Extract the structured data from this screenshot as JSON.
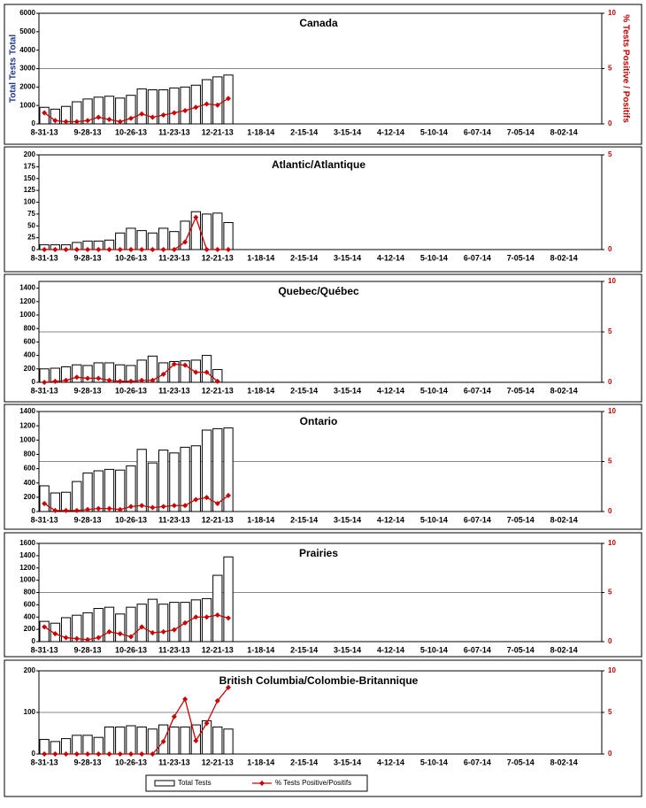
{
  "chart_data": [
    {
      "type": "bar",
      "title": "Canada",
      "ylabel": "Total Tests Total",
      "y2label": "% Tests Positive / Positifs",
      "categories": [
        "8-31-13",
        null,
        null,
        null,
        "9-28-13",
        null,
        null,
        null,
        "10-26-13",
        null,
        null,
        null,
        "11-23-13",
        null,
        null,
        null,
        "12-21-13",
        null,
        null,
        null,
        "1-18-14",
        null,
        null,
        null,
        "2-15-14",
        null,
        null,
        null,
        "3-15-14",
        null,
        null,
        null,
        "4-12-14",
        null,
        null,
        null,
        "5-10-14",
        null,
        null,
        null,
        "6-07-14",
        null,
        null,
        null,
        "7-05-14",
        null,
        null,
        null,
        "8-02-14",
        null,
        null,
        null
      ],
      "series": [
        {
          "color": "#ffffff",
          "values": [
            900,
            800,
            950,
            1200,
            1350,
            1450,
            1500,
            1400,
            1550,
            1900,
            1850,
            1850,
            1950,
            2000,
            2100,
            2400,
            2550,
            2650,
            null,
            null,
            null,
            null,
            null,
            null,
            null,
            null,
            null,
            null,
            null,
            null,
            null,
            null,
            null,
            null,
            null,
            null,
            null,
            null,
            null,
            null,
            null,
            null,
            null,
            null,
            null,
            null,
            null,
            null,
            null,
            null,
            null,
            null
          ]
        },
        {
          "type": "line",
          "axis": "y2",
          "color": "#cc0000",
          "values": [
            1.0,
            0.3,
            0.2,
            0.2,
            0.3,
            0.6,
            0.4,
            0.2,
            0.5,
            0.9,
            0.6,
            0.8,
            1.0,
            1.2,
            1.5,
            1.8,
            1.7,
            2.3,
            null,
            null,
            null,
            null,
            null,
            null,
            null,
            null,
            null,
            null,
            null,
            null,
            null,
            null,
            null,
            null,
            null,
            null,
            null,
            null,
            null,
            null,
            null,
            null,
            null,
            null,
            null,
            null,
            null,
            null,
            null,
            null,
            null,
            null
          ]
        }
      ],
      "ylim": [
        0,
        6000
      ],
      "yticks": [
        0,
        1000,
        2000,
        3000,
        4000,
        5000,
        6000
      ],
      "y2lim": [
        0,
        10
      ],
      "y2ticks": [
        0,
        5,
        10
      ],
      "grid": true
    },
    {
      "type": "bar",
      "title": "Atlantic/Atlantique",
      "categories": [
        "8-31-13",
        null,
        null,
        null,
        "9-28-13",
        null,
        null,
        null,
        "10-26-13",
        null,
        null,
        null,
        "11-23-13",
        null,
        null,
        null,
        "12-21-13",
        null,
        null,
        null,
        "1-18-14",
        null,
        null,
        null,
        "2-15-14",
        null,
        null,
        null,
        "3-15-14",
        null,
        null,
        null,
        "4-12-14",
        null,
        null,
        null,
        "5-10-14",
        null,
        null,
        null,
        "6-07-14",
        null,
        null,
        null,
        "7-05-14",
        null,
        null,
        null,
        "8-02-14",
        null,
        null,
        null
      ],
      "series": [
        {
          "color": "#ffffff",
          "values": [
            10,
            10,
            10,
            15,
            18,
            18,
            20,
            35,
            45,
            40,
            35,
            45,
            38,
            60,
            80,
            75,
            77,
            57,
            null,
            null,
            null,
            null,
            null,
            null,
            null,
            null,
            null,
            null,
            null,
            null,
            null,
            null,
            null,
            null,
            null,
            null,
            null,
            null,
            null,
            null,
            null,
            null,
            null,
            null,
            null,
            null,
            null,
            null,
            null,
            null,
            null,
            null
          ]
        },
        {
          "type": "line",
          "axis": "y2",
          "color": "#cc0000",
          "values": [
            0,
            0,
            0,
            0,
            0,
            0,
            0,
            0,
            0,
            0,
            0,
            0,
            0,
            0.4,
            1.7,
            0,
            0,
            0,
            null,
            null,
            null,
            null,
            null,
            null,
            null,
            null,
            null,
            null,
            null,
            null,
            null,
            null,
            null,
            null,
            null,
            null,
            null,
            null,
            null,
            null,
            null,
            null,
            null,
            null,
            null,
            null,
            null,
            null,
            null,
            null,
            null,
            null
          ]
        }
      ],
      "ylim": [
        0,
        200
      ],
      "yticks": [
        0,
        25,
        50,
        75,
        100,
        125,
        150,
        175,
        200
      ],
      "y2lim": [
        0,
        5
      ],
      "y2ticks": [
        0,
        5
      ],
      "grid": true
    },
    {
      "type": "bar",
      "title": "Quebec/Québec",
      "categories": [
        "8-31-13",
        null,
        null,
        null,
        "9-28-13",
        null,
        null,
        null,
        "10-26-13",
        null,
        null,
        null,
        "11-23-13",
        null,
        null,
        null,
        "12-21-13",
        null,
        null,
        null,
        "1-18-14",
        null,
        null,
        null,
        "2-15-14",
        null,
        null,
        null,
        "3-15-14",
        null,
        null,
        null,
        "4-12-14",
        null,
        null,
        null,
        "5-10-14",
        null,
        null,
        null,
        "6-07-14",
        null,
        null,
        null,
        "7-05-14",
        null,
        null,
        null,
        "8-02-14",
        null,
        null,
        null
      ],
      "series": [
        {
          "color": "#ffffff",
          "values": [
            200,
            210,
            230,
            260,
            250,
            290,
            290,
            260,
            250,
            330,
            390,
            290,
            310,
            320,
            330,
            400,
            190,
            null,
            null,
            null,
            null,
            null,
            null,
            null,
            null,
            null,
            null,
            null,
            null,
            null,
            null,
            null,
            null,
            null,
            null,
            null,
            null,
            null,
            null,
            null,
            null,
            null,
            null,
            null,
            null,
            null,
            null,
            null,
            null,
            null,
            null,
            null
          ]
        },
        {
          "type": "line",
          "axis": "y2",
          "color": "#cc0000",
          "values": [
            0,
            0.1,
            0.2,
            0.5,
            0.4,
            0.4,
            0.2,
            0.1,
            0.1,
            0.2,
            0.2,
            0.8,
            1.8,
            1.7,
            1.0,
            1.0,
            0.1,
            null,
            null,
            null,
            null,
            null,
            null,
            null,
            null,
            null,
            null,
            null,
            null,
            null,
            null,
            null,
            null,
            null,
            null,
            null,
            null,
            null,
            null,
            null,
            null,
            null,
            null,
            null,
            null,
            null,
            null,
            null,
            null,
            null,
            null,
            null
          ]
        }
      ],
      "ylim": [
        0,
        1500
      ],
      "yticks": [
        0,
        200,
        400,
        600,
        800,
        1000,
        1200,
        1400
      ],
      "y2lim": [
        0,
        10
      ],
      "y2ticks": [
        0,
        5,
        10
      ],
      "grid": true
    },
    {
      "type": "bar",
      "title": "Ontario",
      "categories": [
        "8-31-13",
        null,
        null,
        null,
        "9-28-13",
        null,
        null,
        null,
        "10-26-13",
        null,
        null,
        null,
        "11-23-13",
        null,
        null,
        null,
        "12-21-13",
        null,
        null,
        null,
        "1-18-14",
        null,
        null,
        null,
        "2-15-14",
        null,
        null,
        null,
        "3-15-14",
        null,
        null,
        null,
        "4-12-14",
        null,
        null,
        null,
        "5-10-14",
        null,
        null,
        null,
        "6-07-14",
        null,
        null,
        null,
        "7-05-14",
        null,
        null,
        null,
        "8-02-14",
        null,
        null,
        null
      ],
      "series": [
        {
          "color": "#ffffff",
          "values": [
            360,
            260,
            270,
            420,
            540,
            570,
            590,
            580,
            640,
            870,
            680,
            860,
            820,
            900,
            920,
            1140,
            1160,
            1170,
            null,
            null,
            null,
            null,
            null,
            null,
            null,
            null,
            null,
            null,
            null,
            null,
            null,
            null,
            null,
            null,
            null,
            null,
            null,
            null,
            null,
            null,
            null,
            null,
            null,
            null,
            null,
            null,
            null,
            null,
            null,
            null,
            null,
            null
          ]
        },
        {
          "type": "line",
          "axis": "y2",
          "color": "#cc0000",
          "values": [
            0.8,
            0.1,
            0.1,
            0.1,
            0.2,
            0.3,
            0.3,
            0.2,
            0.5,
            0.6,
            0.4,
            0.5,
            0.6,
            0.6,
            1.2,
            1.4,
            0.8,
            1.6,
            null,
            null,
            null,
            null,
            null,
            null,
            null,
            null,
            null,
            null,
            null,
            null,
            null,
            null,
            null,
            null,
            null,
            null,
            null,
            null,
            null,
            null,
            null,
            null,
            null,
            null,
            null,
            null,
            null,
            null,
            null,
            null,
            null,
            null
          ]
        }
      ],
      "ylim": [
        0,
        1400
      ],
      "yticks": [
        0,
        200,
        400,
        600,
        800,
        1000,
        1200,
        1400
      ],
      "y2lim": [
        0,
        10
      ],
      "y2ticks": [
        0,
        5,
        10
      ],
      "grid": true
    },
    {
      "type": "bar",
      "title": "Prairies",
      "categories": [
        "8-31-13",
        null,
        null,
        null,
        "9-28-13",
        null,
        null,
        null,
        "10-26-13",
        null,
        null,
        null,
        "11-23-13",
        null,
        null,
        null,
        "12-21-13",
        null,
        null,
        null,
        "1-18-14",
        null,
        null,
        null,
        "2-15-14",
        null,
        null,
        null,
        "3-15-14",
        null,
        null,
        null,
        "4-12-14",
        null,
        null,
        null,
        "5-10-14",
        null,
        null,
        null,
        "6-07-14",
        null,
        null,
        null,
        "7-05-14",
        null,
        null,
        null,
        "8-02-14",
        null,
        null,
        null
      ],
      "series": [
        {
          "color": "#ffffff",
          "values": [
            330,
            300,
            390,
            430,
            470,
            540,
            560,
            450,
            560,
            610,
            690,
            610,
            640,
            640,
            680,
            700,
            1080,
            1380,
            null,
            null,
            null,
            null,
            null,
            null,
            null,
            null,
            null,
            null,
            null,
            null,
            null,
            null,
            null,
            null,
            null,
            null,
            null,
            null,
            null,
            null,
            null,
            null,
            null,
            null,
            null,
            null,
            null,
            null,
            null,
            null,
            null,
            null
          ]
        },
        {
          "type": "line",
          "axis": "y2",
          "color": "#cc0000",
          "values": [
            1.5,
            0.8,
            0.4,
            0.3,
            0.2,
            0.4,
            1.0,
            0.8,
            0.5,
            1.5,
            0.9,
            1.0,
            1.2,
            1.9,
            2.5,
            2.5,
            2.7,
            2.4,
            null,
            null,
            null,
            null,
            null,
            null,
            null,
            null,
            null,
            null,
            null,
            null,
            null,
            null,
            null,
            null,
            null,
            null,
            null,
            null,
            null,
            null,
            null,
            null,
            null,
            null,
            null,
            null,
            null,
            null,
            null,
            null,
            null,
            null
          ]
        }
      ],
      "ylim": [
        0,
        1600
      ],
      "yticks": [
        0,
        200,
        400,
        600,
        800,
        1000,
        1200,
        1400,
        1600
      ],
      "y2lim": [
        0,
        10
      ],
      "y2ticks": [
        0,
        5,
        10
      ],
      "grid": true
    },
    {
      "type": "bar",
      "title": "British Columbia/Colombie-Britannique",
      "categories": [
        "8-31-13",
        null,
        null,
        null,
        "9-28-13",
        null,
        null,
        null,
        "10-26-13",
        null,
        null,
        null,
        "11-23-13",
        null,
        null,
        null,
        "12-21-13",
        null,
        null,
        null,
        "1-18-14",
        null,
        null,
        null,
        "2-15-14",
        null,
        null,
        null,
        "3-15-14",
        null,
        null,
        null,
        "4-12-14",
        null,
        null,
        null,
        "5-10-14",
        null,
        null,
        null,
        "6-07-14",
        null,
        null,
        null,
        "7-05-14",
        null,
        null,
        null,
        "8-02-14",
        null,
        null,
        null
      ],
      "series": [
        {
          "name": "Total Tests",
          "color": "#ffffff",
          "values": [
            35,
            30,
            37,
            45,
            45,
            40,
            65,
            65,
            68,
            65,
            60,
            70,
            65,
            65,
            70,
            80,
            65,
            60,
            null,
            null,
            null,
            null,
            null,
            null,
            null,
            null,
            null,
            null,
            null,
            null,
            null,
            null,
            null,
            null,
            null,
            null,
            null,
            null,
            null,
            null,
            null,
            null,
            null,
            null,
            null,
            null,
            null,
            null,
            null,
            null,
            null,
            null
          ]
        },
        {
          "name": "% Tests Positive/Positifs",
          "type": "line",
          "axis": "y2",
          "color": "#cc0000",
          "values": [
            0,
            0,
            0,
            0,
            0,
            0,
            0,
            0,
            0,
            0,
            0,
            1.5,
            4.5,
            6.6,
            1.6,
            3.7,
            6.4,
            8.0,
            null,
            null,
            null,
            null,
            null,
            null,
            null,
            null,
            null,
            null,
            null,
            null,
            null,
            null,
            null,
            null,
            null,
            null,
            null,
            null,
            null,
            null,
            null,
            null,
            null,
            null,
            null,
            null,
            null,
            null,
            null,
            null,
            null,
            null
          ]
        }
      ],
      "ylim": [
        0,
        200
      ],
      "yticks": [
        0,
        100,
        200
      ],
      "y2lim": [
        0,
        10
      ],
      "y2ticks": [
        0,
        5,
        10
      ],
      "grid": true
    }
  ]
}
